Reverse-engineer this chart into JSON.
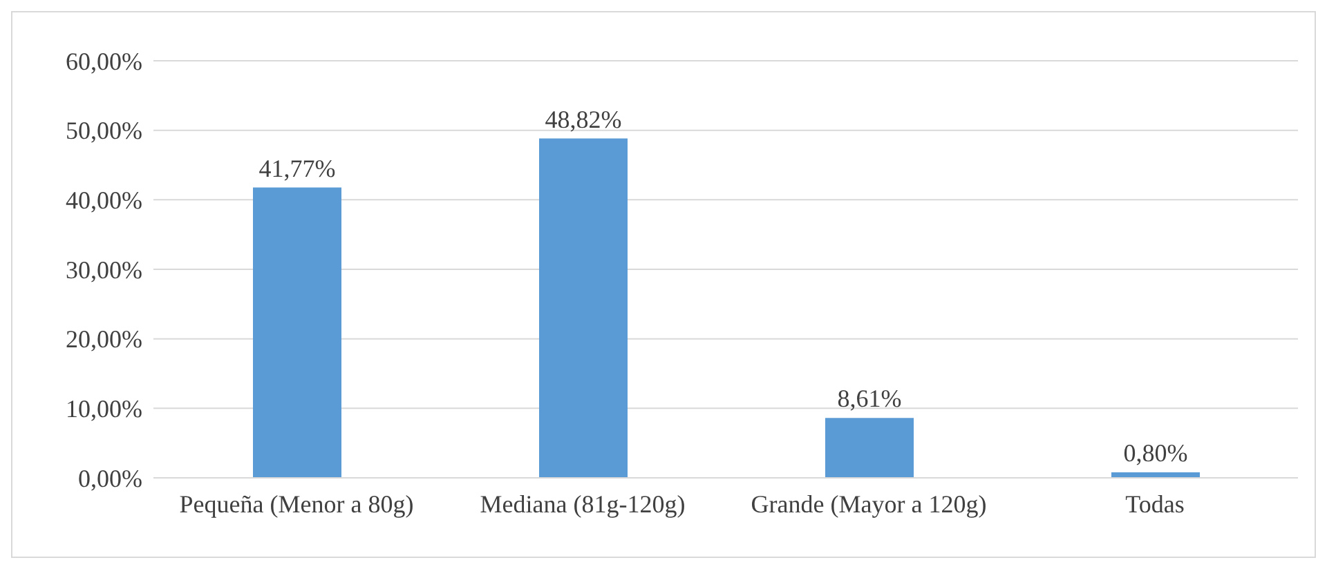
{
  "chart_data": {
    "type": "bar",
    "categories": [
      "Pequeña (Menor a 80g)",
      "Mediana (81g-120g)",
      "Grande (Mayor a 120g)",
      "Todas"
    ],
    "values": [
      41.77,
      48.82,
      8.61,
      0.8
    ],
    "value_labels": [
      "41,77%",
      "48,82%",
      "8,61%",
      "0,80%"
    ],
    "color": "#5b9bd5",
    "ylim": [
      0,
      60
    ],
    "yticks": [
      {
        "value": 0,
        "label": "0,00%"
      },
      {
        "value": 10,
        "label": "10,00%"
      },
      {
        "value": 20,
        "label": "20,00%"
      },
      {
        "value": 30,
        "label": "30,00%"
      },
      {
        "value": 40,
        "label": "40,00%"
      },
      {
        "value": 50,
        "label": "50,00%"
      },
      {
        "value": 60,
        "label": "60,00%"
      }
    ],
    "grid": "y"
  }
}
